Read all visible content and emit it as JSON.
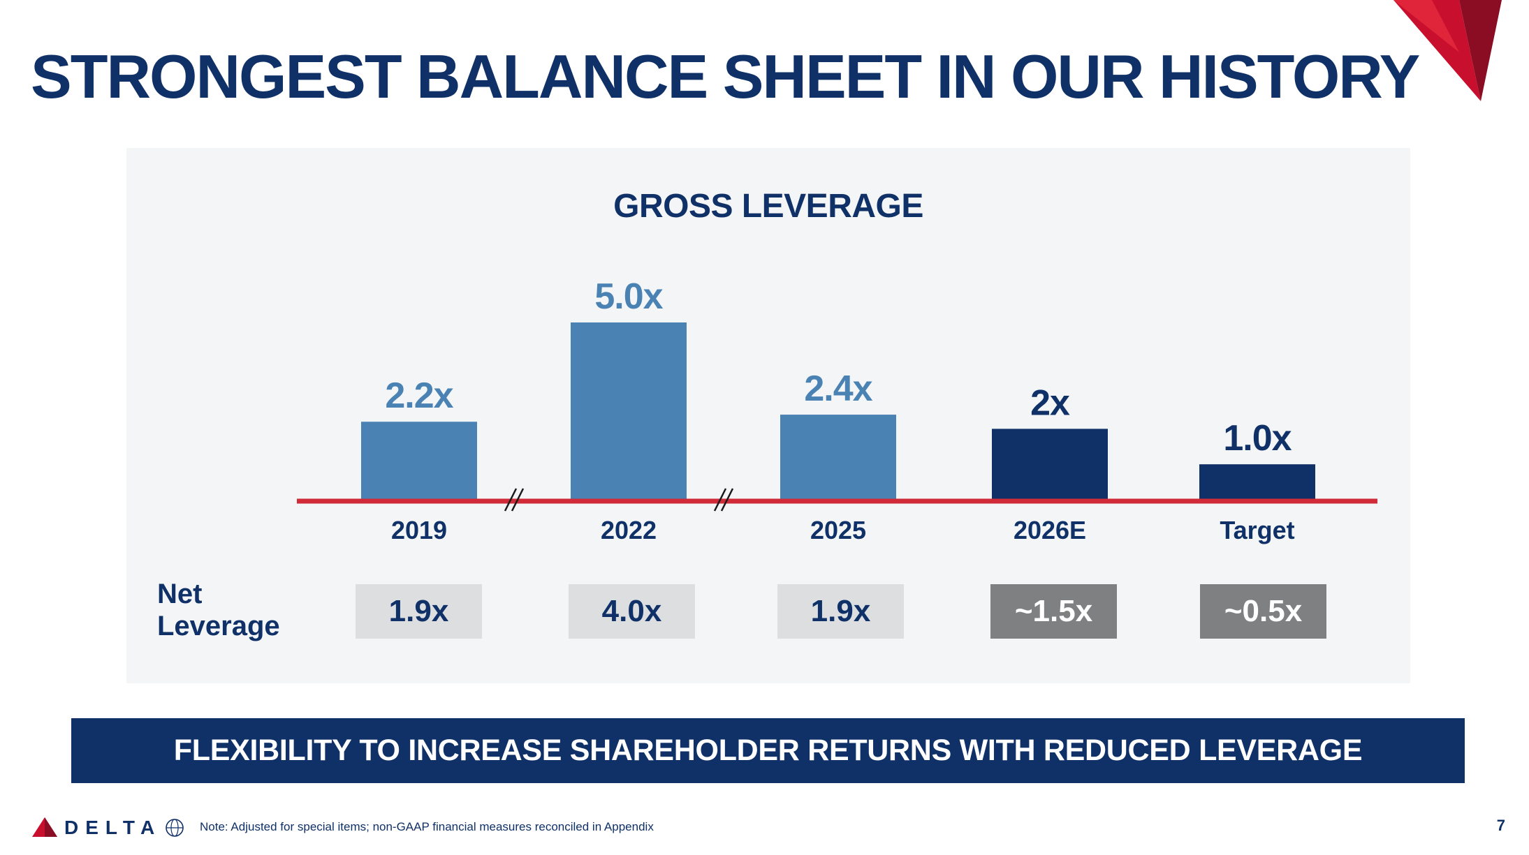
{
  "slide": {
    "title": "STRONGEST BALANCE SHEET IN OUR HISTORY",
    "banner": "FLEXIBILITY TO INCREASE SHAREHOLDER RETURNS WITH REDUCED LEVERAGE",
    "footnote": "Note: Adjusted for special items; non-GAAP financial measures reconciled in Appendix",
    "page_number": "7",
    "brand": "DELTA"
  },
  "chart_data": {
    "type": "bar",
    "title": "GROSS LEVERAGE",
    "categories": [
      "2019",
      "2022",
      "2025",
      "2026E",
      "Target"
    ],
    "values": [
      2.2,
      5.0,
      2.4,
      2.0,
      1.0
    ],
    "value_labels": [
      "2.2x",
      "5.0x",
      "2.4x",
      "2x",
      "1.0x"
    ],
    "projected": [
      false,
      false,
      false,
      true,
      true
    ],
    "axis_breaks_after": [
      "2019",
      "2022"
    ],
    "net_leverage_label": "Net Leverage",
    "net_leverage": [
      "1.9x",
      "4.0x",
      "1.9x",
      "~1.5x",
      "~0.5x"
    ],
    "colors": {
      "historical": "#4a82b4",
      "projected": "#0f3168",
      "baseline": "#d12b3a",
      "title": "#0f3168"
    }
  }
}
